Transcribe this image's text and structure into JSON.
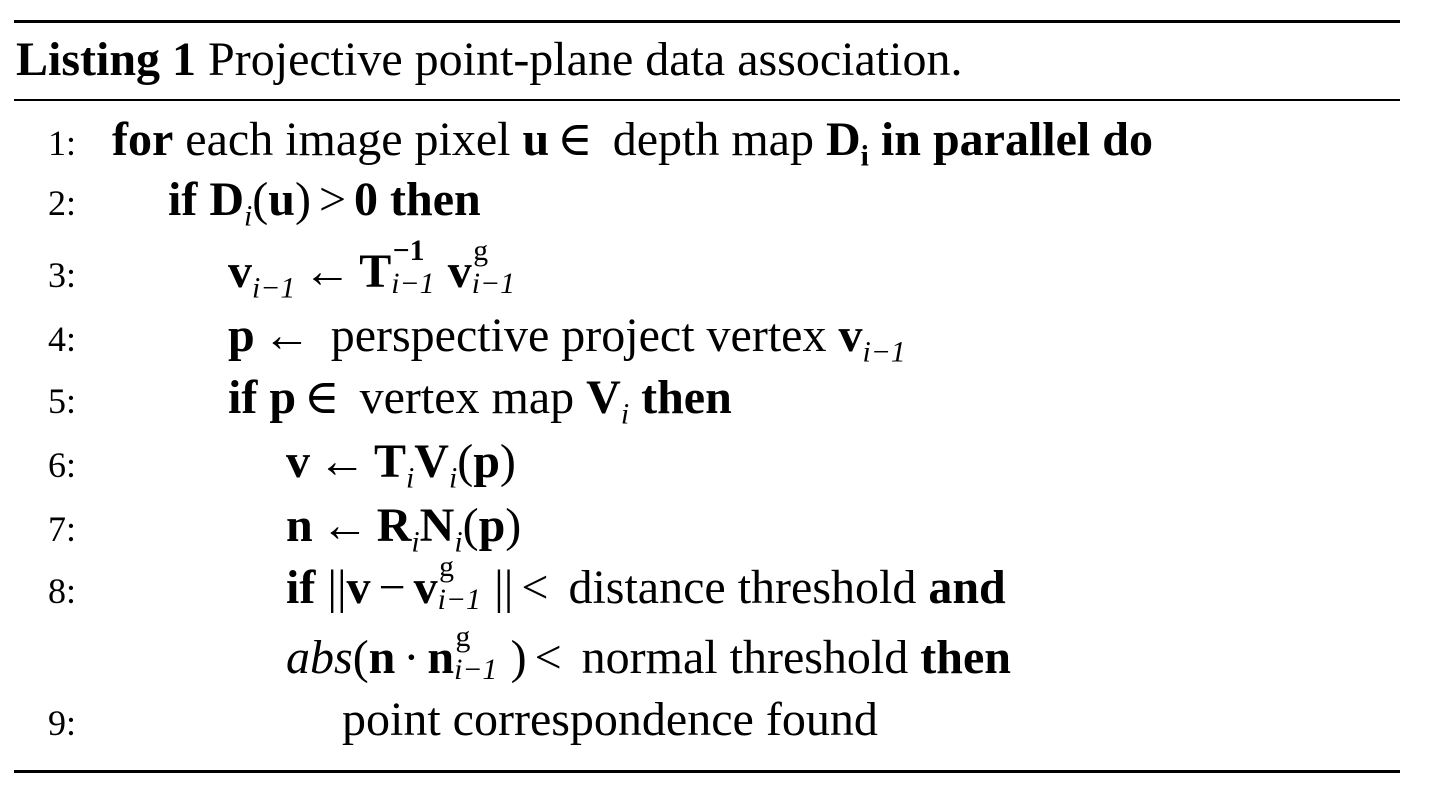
{
  "caption": {
    "label": "Listing 1",
    "text": " Projective point-plane data association."
  },
  "lines": [
    {
      "num": "1:",
      "kw_for": "for",
      "t1": " each image pixel ",
      "u": "u",
      "in": "∈",
      "t2": " depth map ",
      "D": "D",
      "i": "i",
      "kw_tail": " in parallel do"
    },
    {
      "num": "2:",
      "kw_if": "if",
      "D": "D",
      "i": "i",
      "u": "u",
      "gt": ">",
      "zero": "0",
      "kw_then": " then"
    },
    {
      "num": "3:",
      "v": "v",
      "sub": "i−1",
      "arrow": "←",
      "T": "T",
      "sup": "−1",
      "sub2": "i−1",
      "v2": "v",
      "g": "g",
      "sub3": "i−1"
    },
    {
      "num": "4:",
      "p": "p",
      "arrow": "←",
      "text": " perspective project vertex ",
      "v": "v",
      "sub": "i−1"
    },
    {
      "num": "5:",
      "kw_if": "if",
      "p": "p",
      "in": "∈",
      "text": " vertex map ",
      "V": "V",
      "i": "i",
      "kw_then": " then"
    },
    {
      "num": "6:",
      "v": "v",
      "arrow": "←",
      "T": "T",
      "i": "i",
      "V": "V",
      "i2": "i",
      "p": "p"
    },
    {
      "num": "7:",
      "n": "n",
      "arrow": "←",
      "R": "R",
      "i": "i",
      "N": "N",
      "i2": "i",
      "p": "p"
    },
    {
      "num": "8:",
      "kw_if": "if",
      "v": "v",
      "minus": "−",
      "v2": "v",
      "g": "g",
      "sub": "i−1",
      "lt": "<",
      "text": " distance threshold ",
      "kw_and": "and"
    },
    {
      "num": "",
      "abs": "abs",
      "n": "n",
      "dot": "·",
      "n2": "n",
      "g": "g",
      "sub": "i−1",
      "lt": "<",
      "text": " normal threshold ",
      "kw_then": "then"
    },
    {
      "num": "9:",
      "text": "point correspondence found"
    }
  ]
}
